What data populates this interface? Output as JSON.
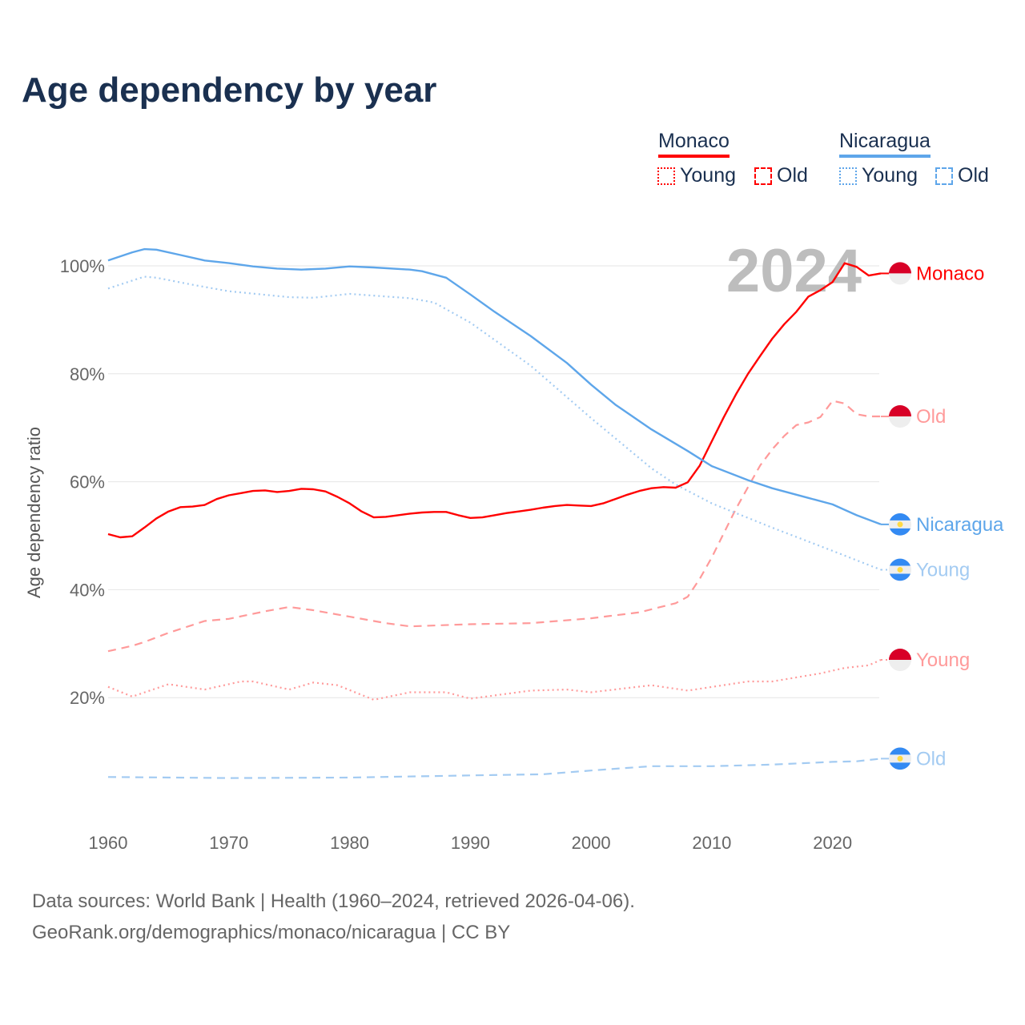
{
  "title": "Age dependency by year",
  "legend": {
    "countries": [
      {
        "name": "Monaco",
        "color": "#ff0000",
        "young_label": "Young",
        "old_label": "Old"
      },
      {
        "name": "Nicaragua",
        "color": "#5ea6ea",
        "young_label": "Young",
        "old_label": "Old"
      }
    ]
  },
  "year_watermark": "2024",
  "footer": {
    "line1": "Data sources: World Bank | Health (1960–2024, retrieved 2026-04-06).",
    "line2": "GeoRank.org/demographics/monaco/nicaragua | CC BY"
  },
  "chart_data": {
    "type": "line",
    "title": "Age dependency by year",
    "xlabel": "",
    "ylabel": "Age dependency ratio",
    "xlim": [
      1960,
      2024
    ],
    "ylim": [
      0,
      100
    ],
    "x_ticks": [
      "1960",
      "1970",
      "1980",
      "1990",
      "2000",
      "2010",
      "2020"
    ],
    "y_ticks": [
      "20%",
      "40%",
      "60%",
      "80%",
      "100%"
    ],
    "y_tick_values": [
      20,
      40,
      60,
      80,
      100
    ],
    "grid": true,
    "legend_position": "top-right",
    "series": [
      {
        "name": "Monaco",
        "label": "Monaco",
        "style": "solid",
        "color": "#ff0000",
        "flag": "monaco",
        "points": [
          [
            1960,
            50.3
          ],
          [
            1961,
            49.7
          ],
          [
            1962,
            49.9
          ],
          [
            1963,
            51.5
          ],
          [
            1964,
            53.2
          ],
          [
            1965,
            54.5
          ],
          [
            1966,
            55.3
          ],
          [
            1967,
            55.4
          ],
          [
            1968,
            55.7
          ],
          [
            1969,
            56.8
          ],
          [
            1970,
            57.5
          ],
          [
            1971,
            57.9
          ],
          [
            1972,
            58.3
          ],
          [
            1973,
            58.4
          ],
          [
            1974,
            58.1
          ],
          [
            1975,
            58.3
          ],
          [
            1976,
            58.7
          ],
          [
            1977,
            58.6
          ],
          [
            1978,
            58.2
          ],
          [
            1979,
            57.2
          ],
          [
            1980,
            56.0
          ],
          [
            1981,
            54.5
          ],
          [
            1982,
            53.4
          ],
          [
            1983,
            53.5
          ],
          [
            1984,
            53.8
          ],
          [
            1985,
            54.1
          ],
          [
            1986,
            54.3
          ],
          [
            1987,
            54.4
          ],
          [
            1988,
            54.4
          ],
          [
            1989,
            53.8
          ],
          [
            1990,
            53.3
          ],
          [
            1991,
            53.4
          ],
          [
            1992,
            53.8
          ],
          [
            1993,
            54.2
          ],
          [
            1994,
            54.5
          ],
          [
            1995,
            54.8
          ],
          [
            1996,
            55.2
          ],
          [
            1997,
            55.5
          ],
          [
            1998,
            55.7
          ],
          [
            1999,
            55.6
          ],
          [
            2000,
            55.5
          ],
          [
            2001,
            56.0
          ],
          [
            2002,
            56.8
          ],
          [
            2003,
            57.6
          ],
          [
            2004,
            58.3
          ],
          [
            2005,
            58.8
          ],
          [
            2006,
            59.0
          ],
          [
            2007,
            58.9
          ],
          [
            2008,
            59.9
          ],
          [
            2009,
            63.0
          ],
          [
            2010,
            67.5
          ],
          [
            2011,
            72.0
          ],
          [
            2012,
            76.2
          ],
          [
            2013,
            80.0
          ],
          [
            2014,
            83.3
          ],
          [
            2015,
            86.5
          ],
          [
            2016,
            89.2
          ],
          [
            2017,
            91.5
          ],
          [
            2018,
            94.3
          ],
          [
            2019,
            95.5
          ],
          [
            2020,
            97.0
          ],
          [
            2021,
            100.5
          ],
          [
            2022,
            99.8
          ],
          [
            2023,
            98.2
          ],
          [
            2024,
            98.6
          ]
        ]
      },
      {
        "name": "Monaco Old",
        "label": "Old",
        "style": "dashed",
        "color": "#ff9a9a",
        "flag": "monaco",
        "points": [
          [
            1960,
            28.6
          ],
          [
            1962,
            29.6
          ],
          [
            1963,
            30.3
          ],
          [
            1965,
            32.0
          ],
          [
            1968,
            34.2
          ],
          [
            1970,
            34.6
          ],
          [
            1973,
            36.0
          ],
          [
            1975,
            36.8
          ],
          [
            1977,
            36.2
          ],
          [
            1980,
            35.0
          ],
          [
            1983,
            33.8
          ],
          [
            1985,
            33.2
          ],
          [
            1990,
            33.6
          ],
          [
            1995,
            33.8
          ],
          [
            2000,
            34.7
          ],
          [
            2004,
            35.8
          ],
          [
            2007,
            37.5
          ],
          [
            2008,
            38.7
          ],
          [
            2009,
            42.0
          ],
          [
            2010,
            46.0
          ],
          [
            2011,
            50.5
          ],
          [
            2012,
            55.0
          ],
          [
            2013,
            59.0
          ],
          [
            2014,
            63.0
          ],
          [
            2015,
            66.0
          ],
          [
            2016,
            68.5
          ],
          [
            2017,
            70.5
          ],
          [
            2018,
            71.0
          ],
          [
            2019,
            72.0
          ],
          [
            2020,
            75.0
          ],
          [
            2021,
            74.5
          ],
          [
            2022,
            72.5
          ],
          [
            2023,
            72.1
          ],
          [
            2024,
            72.1
          ]
        ]
      },
      {
        "name": "Monaco Young",
        "label": "Young",
        "style": "dotted",
        "color": "#ff9a9a",
        "flag": "monaco",
        "points": [
          [
            1960,
            22.0
          ],
          [
            1962,
            20.2
          ],
          [
            1965,
            22.5
          ],
          [
            1968,
            21.5
          ],
          [
            1971,
            23.0
          ],
          [
            1972,
            23.0
          ],
          [
            1975,
            21.5
          ],
          [
            1977,
            22.8
          ],
          [
            1979,
            22.3
          ],
          [
            1982,
            19.6
          ],
          [
            1985,
            21.0
          ],
          [
            1988,
            21.0
          ],
          [
            1990,
            19.8
          ],
          [
            1995,
            21.3
          ],
          [
            1998,
            21.5
          ],
          [
            2000,
            21.0
          ],
          [
            2005,
            22.3
          ],
          [
            2008,
            21.3
          ],
          [
            2013,
            23.0
          ],
          [
            2015,
            23.0
          ],
          [
            2019,
            24.5
          ],
          [
            2021,
            25.5
          ],
          [
            2023,
            26.0
          ],
          [
            2024,
            27.0
          ]
        ]
      },
      {
        "name": "Nicaragua",
        "label": "Nicaragua",
        "style": "solid",
        "color": "#5ea6ea",
        "flag": "nicaragua",
        "points": [
          [
            1960,
            101.0
          ],
          [
            1962,
            102.5
          ],
          [
            1963,
            103.1
          ],
          [
            1964,
            103.0
          ],
          [
            1966,
            102.0
          ],
          [
            1968,
            101.0
          ],
          [
            1970,
            100.5
          ],
          [
            1972,
            99.9
          ],
          [
            1974,
            99.5
          ],
          [
            1976,
            99.3
          ],
          [
            1978,
            99.5
          ],
          [
            1980,
            99.9
          ],
          [
            1982,
            99.7
          ],
          [
            1985,
            99.3
          ],
          [
            1986,
            99.0
          ],
          [
            1988,
            97.8
          ],
          [
            1990,
            94.7
          ],
          [
            1992,
            91.5
          ],
          [
            1995,
            87.0
          ],
          [
            1998,
            82.0
          ],
          [
            2000,
            78.0
          ],
          [
            2002,
            74.3
          ],
          [
            2005,
            69.7
          ],
          [
            2008,
            65.7
          ],
          [
            2010,
            62.9
          ],
          [
            2013,
            60.3
          ],
          [
            2015,
            58.8
          ],
          [
            2018,
            57.0
          ],
          [
            2020,
            55.8
          ],
          [
            2022,
            53.8
          ],
          [
            2024,
            52.1
          ]
        ]
      },
      {
        "name": "Nicaragua Young",
        "label": "Young",
        "style": "dotted",
        "color": "#a3cbf2",
        "flag": "nicaragua",
        "points": [
          [
            1960,
            95.8
          ],
          [
            1963,
            98.0
          ],
          [
            1964,
            97.8
          ],
          [
            1967,
            96.5
          ],
          [
            1970,
            95.3
          ],
          [
            1975,
            94.2
          ],
          [
            1977,
            94.1
          ],
          [
            1980,
            94.8
          ],
          [
            1985,
            94.0
          ],
          [
            1987,
            93.2
          ],
          [
            1990,
            89.5
          ],
          [
            1995,
            81.5
          ],
          [
            2000,
            71.8
          ],
          [
            2005,
            62.5
          ],
          [
            2007,
            59.5
          ],
          [
            2010,
            56.0
          ],
          [
            2015,
            51.5
          ],
          [
            2020,
            47.2
          ],
          [
            2024,
            43.7
          ]
        ]
      },
      {
        "name": "Nicaragua Old",
        "label": "Old",
        "style": "dashed",
        "color": "#a3cbf2",
        "flag": "nicaragua",
        "points": [
          [
            1960,
            5.3
          ],
          [
            1970,
            5.1
          ],
          [
            1980,
            5.2
          ],
          [
            1990,
            5.6
          ],
          [
            1996,
            5.8
          ],
          [
            2000,
            6.5
          ],
          [
            2005,
            7.3
          ],
          [
            2010,
            7.3
          ],
          [
            2015,
            7.6
          ],
          [
            2020,
            8.1
          ],
          [
            2022,
            8.2
          ],
          [
            2024,
            8.7
          ]
        ]
      }
    ]
  }
}
